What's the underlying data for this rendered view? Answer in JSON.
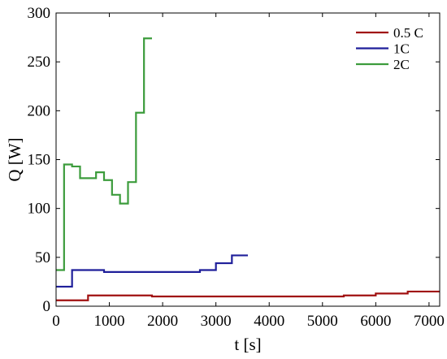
{
  "chart_data": {
    "type": "line",
    "xlabel": "t [s]",
    "ylabel": "Q [W]",
    "xlim": [
      0,
      7200
    ],
    "ylim": [
      0,
      300
    ],
    "xticks": [
      0,
      1000,
      2000,
      3000,
      4000,
      5000,
      6000,
      7000
    ],
    "yticks": [
      0,
      50,
      100,
      150,
      200,
      250,
      300
    ],
    "grid": false,
    "legend_position": "top-right",
    "series": [
      {
        "name": "0.5 C",
        "color": "#a01010",
        "step": true,
        "x": [
          0,
          600,
          1800,
          5400,
          6000,
          6600,
          7200
        ],
        "y": [
          6,
          11,
          10,
          11,
          13,
          15,
          15
        ]
      },
      {
        "name": "1C",
        "color": "#1f1f9a",
        "step": true,
        "x": [
          0,
          300,
          900,
          2700,
          3000,
          3300,
          3600
        ],
        "y": [
          20,
          37,
          35,
          37,
          44,
          52,
          52
        ]
      },
      {
        "name": "2C",
        "color": "#3c9c3c",
        "step": true,
        "x": [
          0,
          150,
          300,
          450,
          600,
          750,
          900,
          1050,
          1200,
          1350,
          1500,
          1650,
          1800
        ],
        "y": [
          37,
          145,
          143,
          131,
          131,
          137,
          129,
          114,
          105,
          127,
          198,
          274,
          274
        ]
      }
    ]
  }
}
